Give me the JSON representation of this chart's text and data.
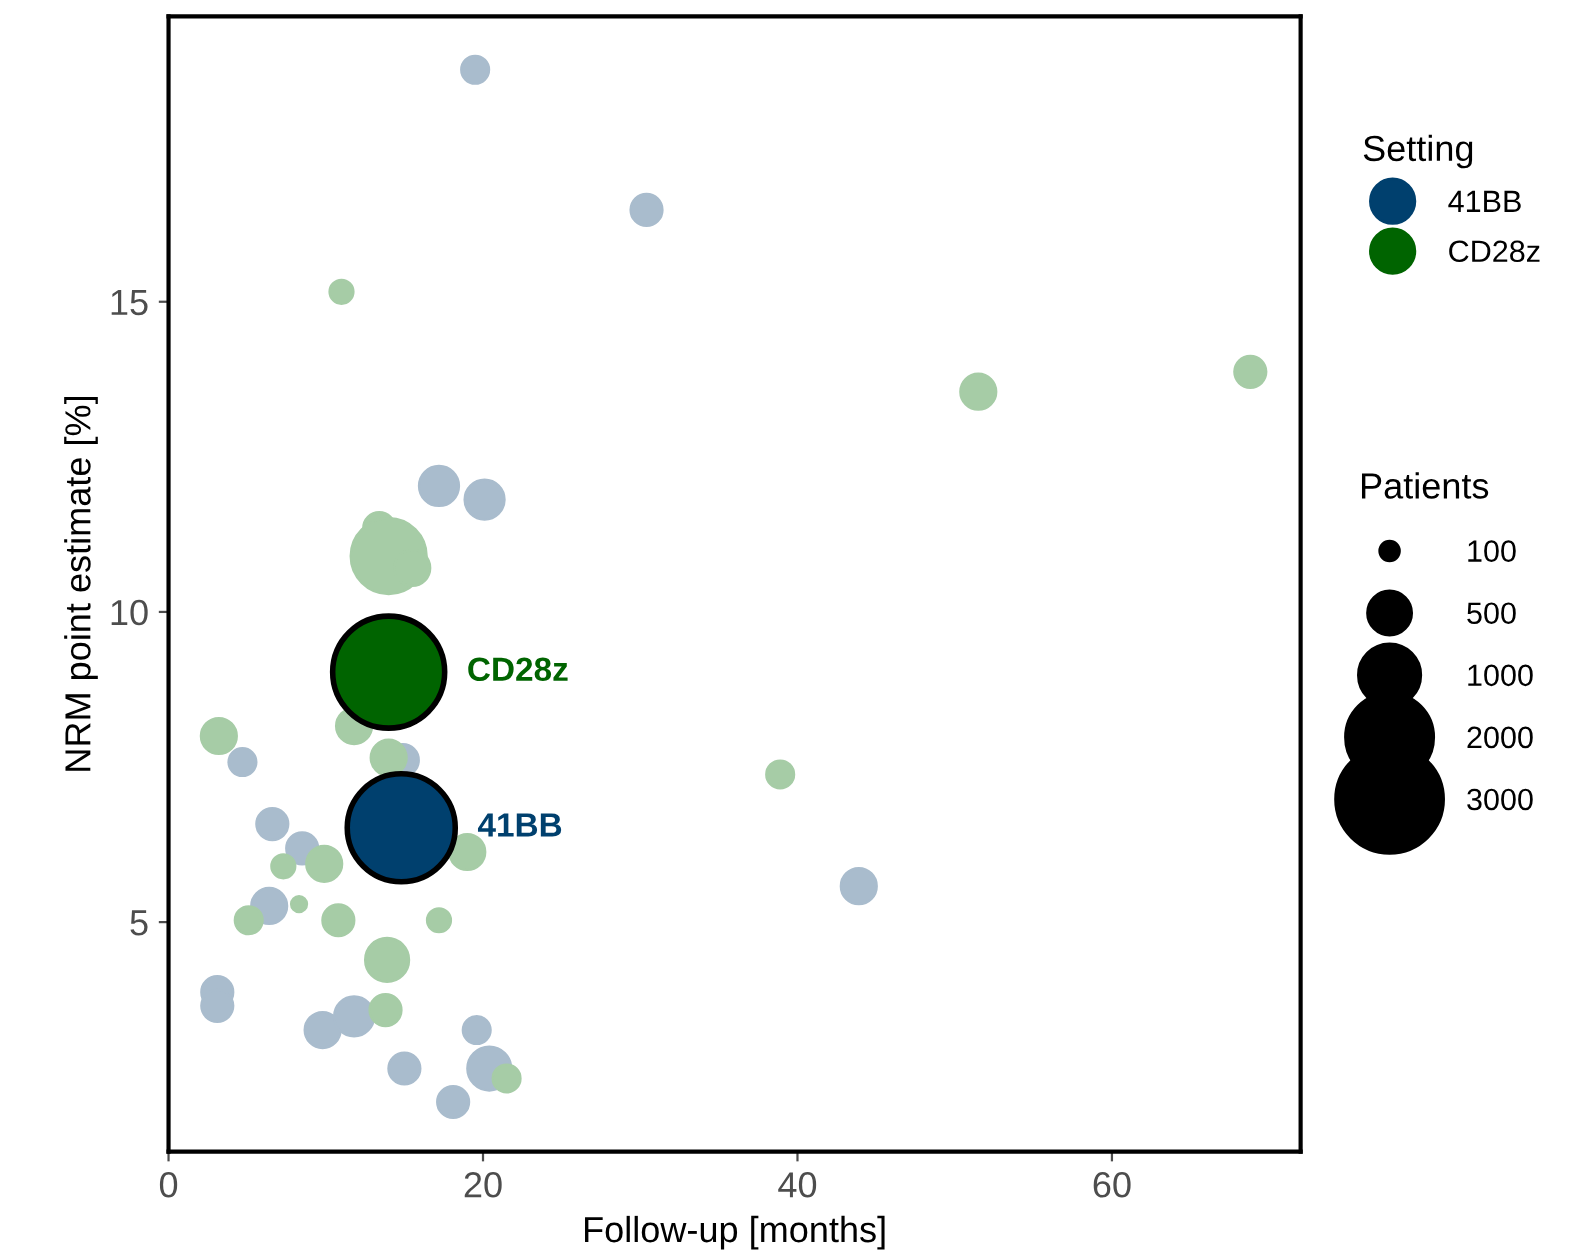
{
  "chart_data": {
    "type": "bubble",
    "xlabel": "Follow-up [months]",
    "ylabel": "NRM point estimate [%]",
    "legend_title": [
      "Setting",
      "Patients"
    ],
    "xlim": [
      0,
      72
    ],
    "ylim": [
      1.3,
      19.6
    ],
    "xticks": [
      0,
      20,
      40,
      60
    ],
    "yticks": [
      5,
      10,
      15
    ],
    "grid": false,
    "legend": "right",
    "size_legend": [
      100,
      500,
      1000,
      2000,
      3000
    ],
    "series": [
      {
        "color": "#a9bccd",
        "x": [
          19.5,
          30.4,
          17.2,
          20.1,
          4.7,
          6.6,
          8.5,
          14.9,
          6.4,
          3.1,
          3.1,
          9.8,
          11.8,
          15.0,
          19.6,
          20.4,
          18.1,
          43.9
        ],
        "values": [
          18.74,
          16.48,
          12.03,
          11.81,
          7.58,
          6.58,
          6.19,
          7.61,
          5.26,
          3.87,
          3.65,
          3.26,
          3.48,
          2.64,
          3.26,
          2.64,
          2.1,
          5.58
        ],
        "sizes": [
          200,
          263,
          412,
          412,
          200,
          263,
          263,
          263,
          333,
          263,
          263,
          333,
          412,
          263,
          200,
          498,
          263,
          333
        ]
      },
      {
        "color": "#a6cca6",
        "x": [
          11.0,
          51.5,
          68.8,
          13.4,
          14.0,
          15.5,
          3.2,
          11.8,
          14.0,
          38.9,
          19.0,
          7.3,
          9.9,
          8.3,
          5.1,
          10.8,
          17.2,
          13.9,
          13.8,
          21.5
        ],
        "values": [
          15.16,
          13.55,
          13.87,
          11.35,
          10.9,
          10.71,
          8.0,
          8.16,
          7.65,
          7.38,
          6.13,
          5.9,
          5.94,
          5.29,
          5.03,
          5.03,
          5.03,
          4.39,
          3.58,
          2.48
        ],
        "sizes": [
          148,
          333,
          263,
          263,
          1486,
          333,
          333,
          333,
          333,
          200,
          333,
          148,
          333,
          66,
          200,
          263,
          148,
          498,
          263,
          200
        ]
      },
      {
        "name": "41BB",
        "color": "#00406e",
        "x": [
          14.8
        ],
        "values": [
          6.52
        ],
        "sizes": [
          3000
        ]
      },
      {
        "name": "CD28z",
        "color": "#006400",
        "x": [
          14.0
        ],
        "values": [
          9.03
        ],
        "sizes": [
          3226
        ]
      }
    ]
  }
}
